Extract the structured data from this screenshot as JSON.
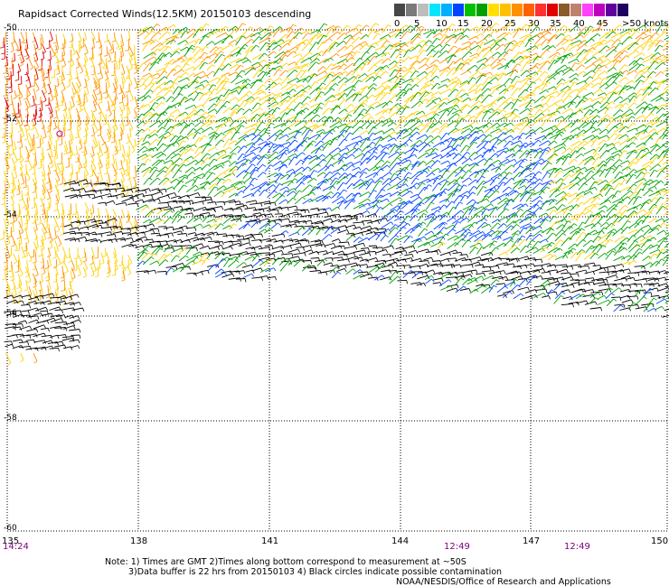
{
  "title": "Rapidsact Corrected Winds(12.5KM) 20150103 descending",
  "legend": {
    "unit_label": ">50 knots",
    "ticks": [
      "0",
      "5",
      "10",
      "15",
      "20",
      "25",
      "30",
      "35",
      "40",
      "45"
    ],
    "colors": [
      "#474747",
      "#7a7a7a",
      "#bdbdbd",
      "#00e6ff",
      "#00b0ff",
      "#0044ff",
      "#00c000",
      "#00a000",
      "#ffe000",
      "#ffc000",
      "#ff9000",
      "#ff6000",
      "#ff3030",
      "#e00000",
      "#8b5a2b",
      "#c08070",
      "#ff40ff",
      "#c000c0",
      "#6000a0",
      "#200060"
    ]
  },
  "axes": {
    "x_ticks": [
      "135",
      "138",
      "141",
      "144",
      "147",
      "150"
    ],
    "y_ticks": [
      "-50",
      "-52",
      "-54",
      "-56",
      "-58",
      "-60"
    ]
  },
  "times": {
    "left": "14:24",
    "mid": "12:49",
    "right": "12:49"
  },
  "notes": {
    "line1": "Note: 1) Times are GMT 2)Times along bottom correspond to measurement at ~50S",
    "line2": "3)Data buffer is 22 hrs from 20150103 4) Black circles indicate possible contamination",
    "credit": "NOAA/NESDIS/Office of Research and Applications"
  },
  "wind_colors": {
    "black": "#000000",
    "blue": "#0044ff",
    "green": "#00a000",
    "yellow": "#ffd000",
    "orange": "#ff9000",
    "red": "#e00000",
    "purple": "#c000c0"
  }
}
